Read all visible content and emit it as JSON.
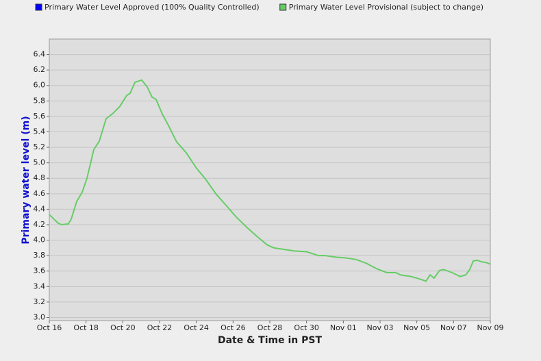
{
  "chart_data": {
    "type": "line",
    "xlabel": "Date & Time in PST",
    "ylabel": "Primary water level (m)",
    "ylabel_color": "#1010d0",
    "xlim": [
      0,
      24
    ],
    "xticks": [
      {
        "value": 0,
        "label": "Oct 16"
      },
      {
        "value": 2,
        "label": "Oct 18"
      },
      {
        "value": 4,
        "label": "Oct 20"
      },
      {
        "value": 6,
        "label": "Oct 22"
      },
      {
        "value": 8,
        "label": "Oct 24"
      },
      {
        "value": 10,
        "label": "Oct 26"
      },
      {
        "value": 12,
        "label": "Oct 28"
      },
      {
        "value": 14,
        "label": "Oct 30"
      },
      {
        "value": 16,
        "label": "Nov 01"
      },
      {
        "value": 18,
        "label": "Nov 03"
      },
      {
        "value": 20,
        "label": "Nov 05"
      },
      {
        "value": 22,
        "label": "Nov 07"
      },
      {
        "value": 24,
        "label": "Nov 09"
      }
    ],
    "ylim": [
      2.96,
      6.6
    ],
    "yticks": [
      {
        "value": 3.0,
        "label": "3.0"
      },
      {
        "value": 3.2,
        "label": "3.2"
      },
      {
        "value": 3.4,
        "label": "3.4"
      },
      {
        "value": 3.6,
        "label": "3.6"
      },
      {
        "value": 3.8,
        "label": "3.8"
      },
      {
        "value": 4.0,
        "label": "4.0"
      },
      {
        "value": 4.2,
        "label": "4.2"
      },
      {
        "value": 4.4,
        "label": "4.4"
      },
      {
        "value": 4.6,
        "label": "4.6"
      },
      {
        "value": 4.8,
        "label": "4.8"
      },
      {
        "value": 5.0,
        "label": "5.0"
      },
      {
        "value": 5.2,
        "label": "5.2"
      },
      {
        "value": 5.4,
        "label": "5.4"
      },
      {
        "value": 5.6,
        "label": "5.6"
      },
      {
        "value": 5.8,
        "label": "5.8"
      },
      {
        "value": 6.0,
        "label": "6.0"
      },
      {
        "value": 6.2,
        "label": "6.2"
      },
      {
        "value": 6.4,
        "label": "6.4"
      }
    ],
    "grid": true,
    "series": [
      {
        "name": "Primary Water Level Approved (100% Quality Controlled)",
        "color": "#0000ff",
        "x": [],
        "values": []
      },
      {
        "name": "Primary Water Level Provisional (subject to change)",
        "color": "#66cc66",
        "x": [
          0,
          0.48,
          0.67,
          1.04,
          1.19,
          1.49,
          1.79,
          2.05,
          2.42,
          2.72,
          3.09,
          3.47,
          3.84,
          4.21,
          4.4,
          4.66,
          5.03,
          5.33,
          5.59,
          5.81,
          6.15,
          6.49,
          6.93,
          7.45,
          8.01,
          8.5,
          9.06,
          9.62,
          10.17,
          10.73,
          11.29,
          11.85,
          12.22,
          12.78,
          13.34,
          14.01,
          14.65,
          15.02,
          15.58,
          16.14,
          16.7,
          17.26,
          17.82,
          18.37,
          18.86,
          19.12,
          19.68,
          20.13,
          20.5,
          20.72,
          20.94,
          21.24,
          21.47,
          21.92,
          22.36,
          22.66,
          22.88,
          23.07,
          23.29,
          23.52,
          23.78,
          24
        ],
        "values": [
          4.33,
          4.22,
          4.2,
          4.21,
          4.27,
          4.5,
          4.62,
          4.8,
          5.17,
          5.28,
          5.57,
          5.64,
          5.73,
          5.87,
          5.9,
          6.04,
          6.07,
          5.98,
          5.85,
          5.82,
          5.63,
          5.48,
          5.27,
          5.13,
          4.93,
          4.79,
          4.6,
          4.45,
          4.3,
          4.17,
          4.05,
          3.94,
          3.9,
          3.88,
          3.86,
          3.85,
          3.8,
          3.8,
          3.78,
          3.77,
          3.75,
          3.7,
          3.63,
          3.58,
          3.58,
          3.55,
          3.53,
          3.5,
          3.47,
          3.55,
          3.51,
          3.61,
          3.62,
          3.58,
          3.53,
          3.55,
          3.62,
          3.73,
          3.74,
          3.72,
          3.71,
          3.69
        ]
      }
    ]
  }
}
